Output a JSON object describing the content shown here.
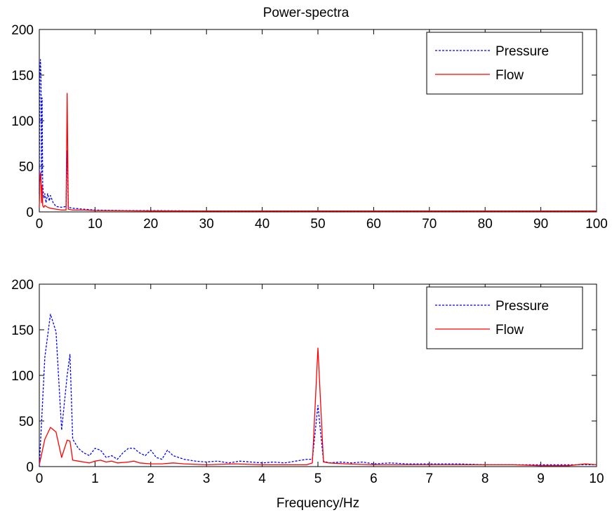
{
  "figure": {
    "title": "Power-spectra",
    "xlabel": "Frequency/Hz"
  },
  "chart_data": [
    {
      "type": "line",
      "title": "Power-spectra",
      "xlabel": "",
      "ylabel": "",
      "xlim": [
        0,
        100
      ],
      "ylim": [
        0,
        200
      ],
      "xticks": [
        0,
        10,
        20,
        30,
        40,
        50,
        60,
        70,
        80,
        90,
        100
      ],
      "yticks": [
        0,
        50,
        100,
        150,
        200
      ],
      "grid": false,
      "legend_position": "top-right",
      "series": [
        {
          "name": "Pressure",
          "color": "#0000ff",
          "style": "dashed",
          "x": [
            0,
            0.1,
            0.2,
            0.3,
            0.4,
            0.5,
            0.6,
            0.8,
            1.0,
            1.2,
            1.5,
            1.8,
            2.0,
            2.5,
            3,
            4,
            4.8,
            5.0,
            5.2,
            6,
            8,
            10,
            15,
            20,
            25,
            30,
            40,
            50,
            60,
            70,
            80,
            90,
            100
          ],
          "y": [
            20,
            150,
            167,
            148,
            40,
            125,
            30,
            15,
            20,
            10,
            20,
            12,
            18,
            10,
            6,
            5,
            6,
            67,
            5,
            4,
            3,
            2,
            1.5,
            1.5,
            1.2,
            1,
            1,
            1,
            1,
            1,
            1,
            1,
            1
          ]
        },
        {
          "name": "Flow",
          "color": "#ff0000",
          "style": "solid",
          "x": [
            0,
            0.1,
            0.2,
            0.3,
            0.4,
            0.5,
            0.6,
            0.8,
            1.0,
            1.5,
            2.0,
            3,
            4,
            4.8,
            5.0,
            5.2,
            6,
            8,
            10,
            15,
            20,
            30,
            40,
            50,
            60,
            70,
            80,
            90,
            100
          ],
          "y": [
            5,
            30,
            43,
            38,
            10,
            29,
            7,
            5,
            7,
            5,
            4,
            3,
            2,
            2,
            130,
            3,
            2,
            2,
            1.5,
            1.2,
            1,
            1,
            1,
            1,
            1,
            1,
            1,
            1,
            1
          ]
        }
      ]
    },
    {
      "type": "line",
      "title": "",
      "xlabel": "Frequency/Hz",
      "ylabel": "",
      "xlim": [
        0,
        10
      ],
      "ylim": [
        0,
        200
      ],
      "xticks": [
        0,
        1,
        2,
        3,
        4,
        5,
        6,
        7,
        8,
        9,
        10
      ],
      "yticks": [
        0,
        50,
        100,
        150,
        200
      ],
      "grid": false,
      "legend_position": "top-right",
      "series": [
        {
          "name": "Pressure",
          "color": "#0000ff",
          "style": "dashed",
          "x": [
            0,
            0.1,
            0.2,
            0.3,
            0.4,
            0.5,
            0.55,
            0.6,
            0.7,
            0.8,
            0.9,
            1.0,
            1.1,
            1.2,
            1.3,
            1.4,
            1.5,
            1.6,
            1.7,
            1.8,
            1.9,
            2.0,
            2.1,
            2.2,
            2.3,
            2.4,
            2.5,
            2.6,
            2.8,
            3.0,
            3.2,
            3.4,
            3.6,
            3.8,
            4.0,
            4.2,
            4.4,
            4.6,
            4.8,
            4.9,
            5.0,
            5.1,
            5.2,
            5.4,
            5.6,
            5.8,
            6.0,
            6.3,
            6.6,
            7.0,
            7.5,
            8.0,
            8.5,
            9.0,
            9.5,
            9.8,
            10.0
          ],
          "y": [
            0,
            120,
            167,
            148,
            40,
            100,
            123,
            30,
            20,
            15,
            12,
            20,
            18,
            10,
            12,
            8,
            15,
            20,
            20,
            15,
            12,
            18,
            10,
            8,
            18,
            12,
            10,
            8,
            6,
            5,
            6,
            4,
            6,
            5,
            4,
            5,
            4,
            6,
            8,
            8,
            67,
            6,
            4,
            5,
            4,
            5,
            3,
            4,
            3,
            3,
            3,
            2,
            2,
            2,
            2,
            2,
            2
          ]
        },
        {
          "name": "Flow",
          "color": "#ff0000",
          "style": "solid",
          "x": [
            0,
            0.1,
            0.2,
            0.3,
            0.4,
            0.5,
            0.55,
            0.6,
            0.7,
            0.8,
            0.9,
            1.0,
            1.1,
            1.2,
            1.3,
            1.4,
            1.6,
            1.7,
            1.8,
            2.0,
            2.2,
            2.4,
            2.6,
            3.0,
            3.5,
            4.0,
            4.5,
            4.8,
            4.9,
            5.0,
            5.1,
            5.2,
            5.5,
            6.0,
            6.5,
            7.0,
            7.5,
            8.0,
            8.5,
            9.0,
            9.5,
            9.8,
            10.0
          ],
          "y": [
            2,
            30,
            43,
            38,
            10,
            29,
            28,
            7,
            6,
            5,
            4,
            6,
            7,
            5,
            6,
            4,
            5,
            6,
            4,
            3,
            3,
            4,
            3,
            2,
            3,
            2,
            2,
            2,
            4,
            130,
            5,
            4,
            3,
            2,
            2,
            2,
            2,
            2,
            2,
            1,
            1,
            3,
            2
          ]
        }
      ]
    }
  ]
}
